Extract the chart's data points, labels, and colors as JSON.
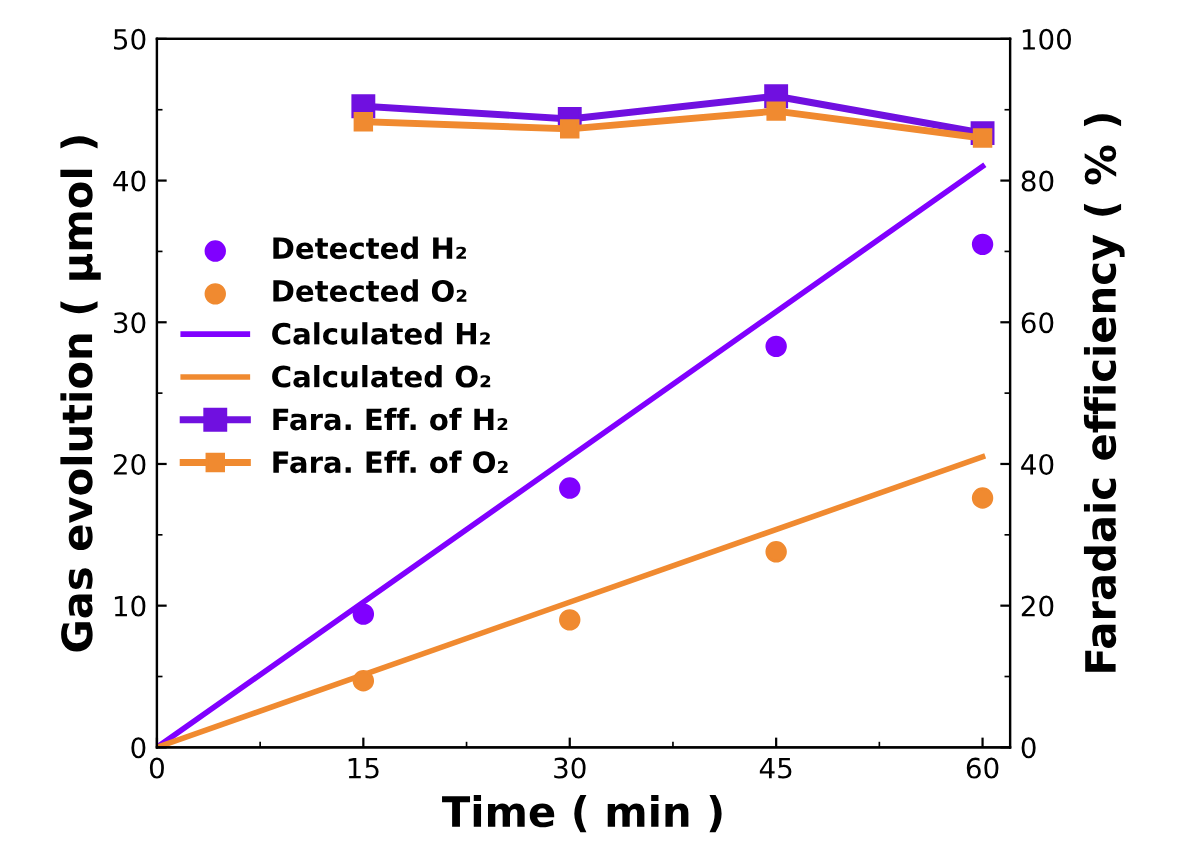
{
  "chart_data": {
    "type": "line",
    "xlabel": "Time ( min )",
    "ylabel": "Gas evolution ( μmol )",
    "y2label": "Faradaic efficiency ( % )",
    "xlim": [
      0,
      62
    ],
    "xticks": [
      0,
      15,
      30,
      45,
      60
    ],
    "ylim": [
      0,
      50
    ],
    "yticks": [
      0,
      10,
      20,
      30,
      40,
      50
    ],
    "y2lim": [
      0,
      100
    ],
    "y2ticks": [
      0,
      20,
      40,
      60,
      80,
      100
    ],
    "legend": "left",
    "grid": false,
    "series": [
      {
        "name": "Detected H₂",
        "type": "scatter",
        "marker": "circle",
        "color": "#8000ff",
        "x": [
          15,
          30,
          45,
          60
        ],
        "values": [
          9.4,
          18.3,
          28.3,
          35.5
        ]
      },
      {
        "name": "Detected O₂",
        "type": "scatter",
        "marker": "circle",
        "color": "#f08a30",
        "x": [
          15,
          30,
          45,
          60
        ],
        "values": [
          4.7,
          9.0,
          13.8,
          17.6
        ]
      },
      {
        "name": "Calculated H₂",
        "marker": "none",
        "color": "#8000ff",
        "x": [
          0,
          60
        ],
        "values": [
          0,
          41
        ]
      },
      {
        "name": "Calculated O₂",
        "marker": "none",
        "color": "#f08a30",
        "x": [
          0,
          60
        ],
        "values": [
          0,
          20.5
        ]
      },
      {
        "name": "Fara. Eff. of H₂",
        "marker": "square",
        "axis": "y2",
        "color": "#7010e0",
        "x": [
          15,
          30,
          45,
          60
        ],
        "values": [
          90.5,
          88.7,
          91.9,
          86.7
        ]
      },
      {
        "name": "Fara. Eff. of O₂",
        "marker": "square",
        "axis": "y2",
        "color": "#f08a30",
        "x": [
          15,
          30,
          45,
          60
        ],
        "values": [
          88.3,
          87.3,
          89.8,
          86.0
        ]
      }
    ]
  }
}
